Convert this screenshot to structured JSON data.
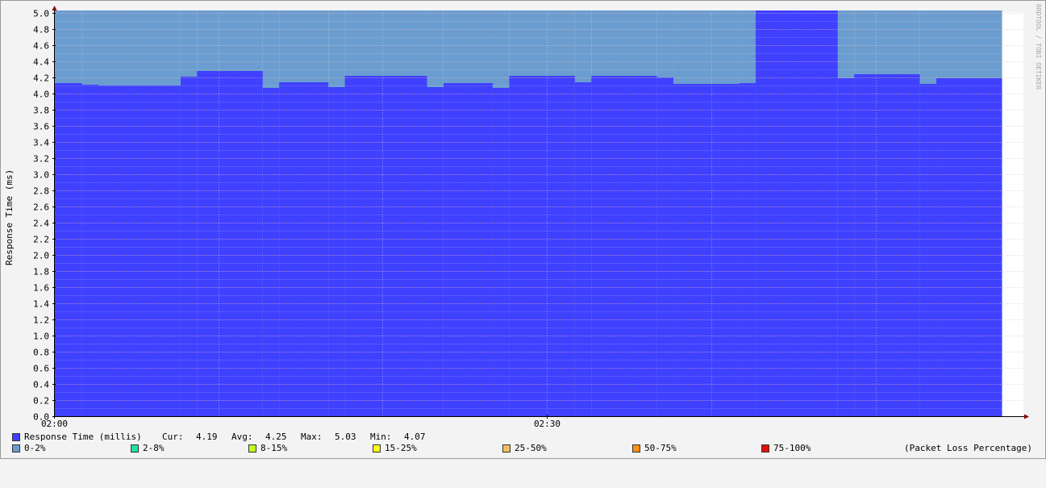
{
  "chart_data": {
    "type": "area",
    "title": "",
    "ylabel": "Response Time (ms)",
    "xlabel": "",
    "ylim": [
      0,
      5.0
    ],
    "y_ticks": [
      "0.0",
      "0.2",
      "0.4",
      "0.6",
      "0.8",
      "1.0",
      "1.2",
      "1.4",
      "1.6",
      "1.8",
      "2.0",
      "2.2",
      "2.4",
      "2.6",
      "2.8",
      "3.0",
      "3.2",
      "3.4",
      "3.6",
      "3.8",
      "4.0",
      "4.2",
      "4.4",
      "4.6",
      "4.8",
      "5.0"
    ],
    "x_range_minutes": [
      0,
      59
    ],
    "x_ticks": [
      {
        "label": "02:00",
        "minute": 0
      },
      {
        "label": "02:30",
        "minute": 30
      }
    ],
    "x_grid_minutes": [
      0,
      10,
      20,
      30,
      40,
      50
    ],
    "packet_loss_fill_value": 5.03,
    "response_time_series": [
      {
        "start": 0.0,
        "end": 1.7,
        "value": 4.13
      },
      {
        "start": 1.7,
        "end": 2.7,
        "value": 4.11
      },
      {
        "start": 2.7,
        "end": 7.7,
        "value": 4.1
      },
      {
        "start": 7.7,
        "end": 8.7,
        "value": 4.21
      },
      {
        "start": 8.7,
        "end": 12.7,
        "value": 4.28
      },
      {
        "start": 12.7,
        "end": 13.7,
        "value": 4.07
      },
      {
        "start": 13.7,
        "end": 16.7,
        "value": 4.14
      },
      {
        "start": 16.7,
        "end": 17.7,
        "value": 4.08
      },
      {
        "start": 17.7,
        "end": 22.7,
        "value": 4.22
      },
      {
        "start": 22.7,
        "end": 23.7,
        "value": 4.08
      },
      {
        "start": 23.7,
        "end": 26.7,
        "value": 4.13
      },
      {
        "start": 26.7,
        "end": 27.7,
        "value": 4.07
      },
      {
        "start": 27.7,
        "end": 31.7,
        "value": 4.22
      },
      {
        "start": 31.7,
        "end": 32.7,
        "value": 4.14
      },
      {
        "start": 32.7,
        "end": 36.7,
        "value": 4.22
      },
      {
        "start": 36.7,
        "end": 37.7,
        "value": 4.2
      },
      {
        "start": 37.7,
        "end": 41.7,
        "value": 4.12
      },
      {
        "start": 41.7,
        "end": 42.7,
        "value": 4.13
      },
      {
        "start": 42.7,
        "end": 47.7,
        "value": 5.03
      },
      {
        "start": 47.7,
        "end": 48.7,
        "value": 4.19
      },
      {
        "start": 48.7,
        "end": 52.7,
        "value": 4.24
      },
      {
        "start": 52.7,
        "end": 53.7,
        "value": 4.12
      },
      {
        "start": 53.7,
        "end": 57.7,
        "value": 4.19
      }
    ],
    "colors": {
      "response_time": "#4040ff",
      "packet_loss_fill": "#6b9dd0",
      "grid_minor": "#d9d9f5",
      "grid_major": "#e0a0a0",
      "axis": "#000000",
      "arrow": "#8b0000"
    }
  },
  "legend": {
    "response_time": {
      "label": "Response Time (millis)",
      "color": "#4040ff",
      "cur_label": "Cur:",
      "cur_value": "4.19",
      "avg_label": "Avg:",
      "avg_value": "4.25",
      "max_label": "Max:",
      "max_value": "5.03",
      "min_label": "Min:",
      "min_value": "4.07"
    },
    "packet_loss": [
      {
        "label": "0-2%",
        "color": "#6b9dd0"
      },
      {
        "label": "2-8%",
        "color": "#20e0a0"
      },
      {
        "label": "8-15%",
        "color": "#c0ff20"
      },
      {
        "label": "15-25%",
        "color": "#ffff10"
      },
      {
        "label": "25-50%",
        "color": "#f0c060"
      },
      {
        "label": "50-75%",
        "color": "#ff9010"
      },
      {
        "label": "75-100%",
        "color": "#e01010"
      }
    ],
    "packet_loss_title": "(Packet Loss Percentage)"
  },
  "watermark": "RRDTOOL / TOBI OETIKER"
}
